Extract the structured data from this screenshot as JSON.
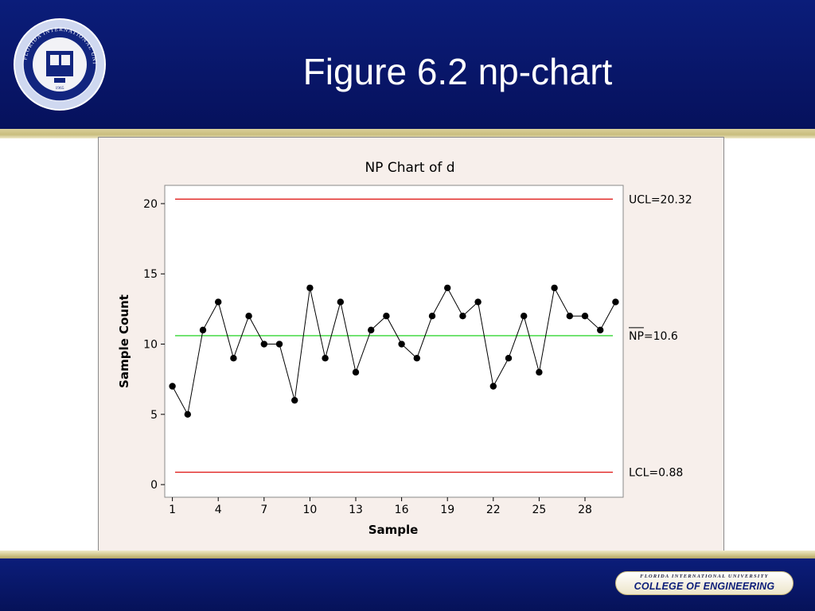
{
  "slide": {
    "title": "Figure 6.2 np-chart",
    "seal_text": "FLORIDA INTERNATIONAL UNIVERSITY MIAMI",
    "seal_year": "1965",
    "footer_badge_top": "FLORIDA INTERNATIONAL UNIVERSITY",
    "footer_badge_main": "COLLEGE OF ENGINEERING"
  },
  "colors": {
    "header_navy": "#0b1d7a",
    "gold": "#c9bd7e",
    "chart_background": "#f7efeb",
    "control_limit": "#e0201e",
    "center_line": "#34d534",
    "series": "#000000"
  },
  "chart_data": {
    "type": "line",
    "title": "NP Chart of d",
    "xlabel": "Sample",
    "ylabel": "Sample Count",
    "x": [
      1,
      2,
      3,
      4,
      5,
      6,
      7,
      8,
      9,
      10,
      11,
      12,
      13,
      14,
      15,
      16,
      17,
      18,
      19,
      20,
      21,
      22,
      23,
      24,
      25,
      26,
      27,
      28,
      29,
      30
    ],
    "values": [
      7,
      5,
      11,
      13,
      9,
      12,
      10,
      10,
      6,
      14,
      9,
      13,
      8,
      11,
      12,
      10,
      9,
      12,
      14,
      12,
      13,
      7,
      9,
      12,
      8,
      14,
      12,
      12,
      11,
      13
    ],
    "xlim": [
      0.5,
      30.5
    ],
    "ylim": [
      -0.9,
      21.3
    ],
    "x_ticks": [
      1,
      4,
      7,
      10,
      13,
      16,
      19,
      22,
      25,
      28
    ],
    "y_ticks": [
      0,
      5,
      10,
      15,
      20
    ],
    "grid": false,
    "reference_lines": [
      {
        "label": "UCL=20.32",
        "value": 20.32,
        "color": "#e0201e"
      },
      {
        "label": "NP=10.6",
        "value": 10.6,
        "color": "#34d534",
        "overline_prefix": "NP"
      },
      {
        "label": "LCL=0.88",
        "value": 0.88,
        "color": "#e0201e"
      }
    ]
  }
}
